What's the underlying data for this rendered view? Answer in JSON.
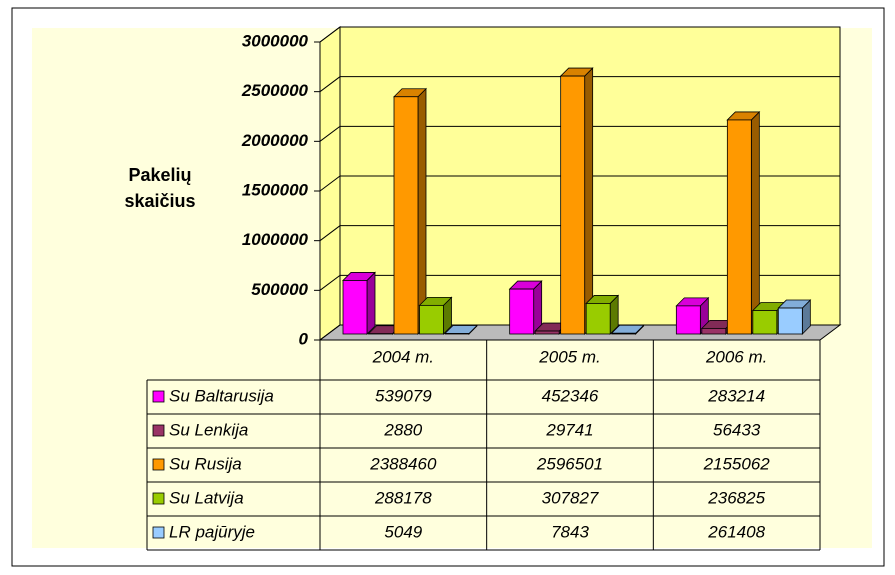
{
  "chart_data": {
    "type": "bar3d",
    "ylabel": "Pakelių skaičius",
    "categories": [
      "2004 m.",
      "2005 m.",
      "2006 m."
    ],
    "series": [
      {
        "name": "Su Baltarusija",
        "color": "#ff00ff",
        "values": [
          539079,
          452346,
          283214
        ]
      },
      {
        "name": "Su Lenkija",
        "color": "#993366",
        "values": [
          2880,
          29741,
          56433
        ]
      },
      {
        "name": "Su Rusija",
        "color": "#ff9900",
        "values": [
          2388460,
          2596501,
          2155062
        ]
      },
      {
        "name": "Su Latvija",
        "color": "#99cc00",
        "values": [
          288178,
          307827,
          236825
        ]
      },
      {
        "name": "LR pajūryje",
        "color": "#99ccff",
        "values": [
          5049,
          7843,
          261408
        ]
      }
    ],
    "ylim": [
      0,
      3000000
    ],
    "yticks": [
      0,
      500000,
      1000000,
      1500000,
      2000000,
      2500000,
      3000000
    ],
    "grid": true
  }
}
